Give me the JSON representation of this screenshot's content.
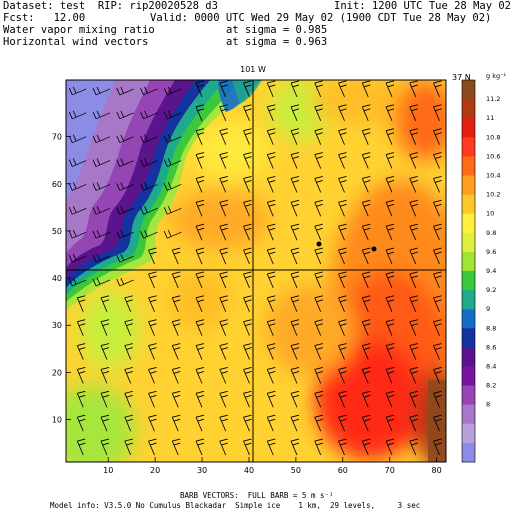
{
  "header": {
    "dataset": "Dataset: test  RIP: rip20020528 d3",
    "init": "Init: 1200 UTC Tue 28 May 02",
    "fcst": "Fcst:   12.00",
    "valid": "Valid: 0000 UTC Wed 29 May 02 (1900 CDT Tue 28 May 02)",
    "field1": "Water vapor mixing ratio",
    "field1_level": "at sigma = 0.985",
    "field2": "Horizontal wind vectors",
    "field2_level": "at sigma = 0.963"
  },
  "map": {
    "longitude_label": "101 W",
    "latitude_label": "37 N",
    "x_ticks": [
      "10",
      "20",
      "30",
      "40",
      "50",
      "60",
      "70",
      "80"
    ],
    "y_ticks": [
      "10",
      "20",
      "30",
      "40",
      "50",
      "60",
      "70"
    ],
    "x_range": [
      1,
      82
    ],
    "y_range": [
      1,
      82
    ]
  },
  "colorbar": {
    "unit": "g kg⁻¹",
    "labels": [
      "11.2",
      "11",
      "10.8",
      "10.6",
      "10.4",
      "10.2",
      "10",
      "9.8",
      "9.6",
      "9.4",
      "9.2",
      "9",
      "8.8",
      "8.6",
      "8.4",
      "8.2",
      "8"
    ],
    "colors": [
      "#8b4a1e",
      "#b03a12",
      "#e01e12",
      "#ff3a1e",
      "#ff6a14",
      "#ff9e1e",
      "#ffc828",
      "#fff03c",
      "#dcf03c",
      "#9ee632",
      "#3cc83c",
      "#1eaa8c",
      "#146ec8",
      "#1432a0",
      "#5a148c",
      "#7814a0",
      "#9646b4",
      "#a878c8",
      "#b8a0dc",
      "#8c8ce6"
    ]
  },
  "footer": {
    "barb_note": "BARB VECTORS:  FULL BARB = 5 m s⁻¹",
    "model_info": "Model info: V3.5.0 No Cumulus Blackadar  Simple ice    1 km,  29 levels,     3 sec"
  }
}
